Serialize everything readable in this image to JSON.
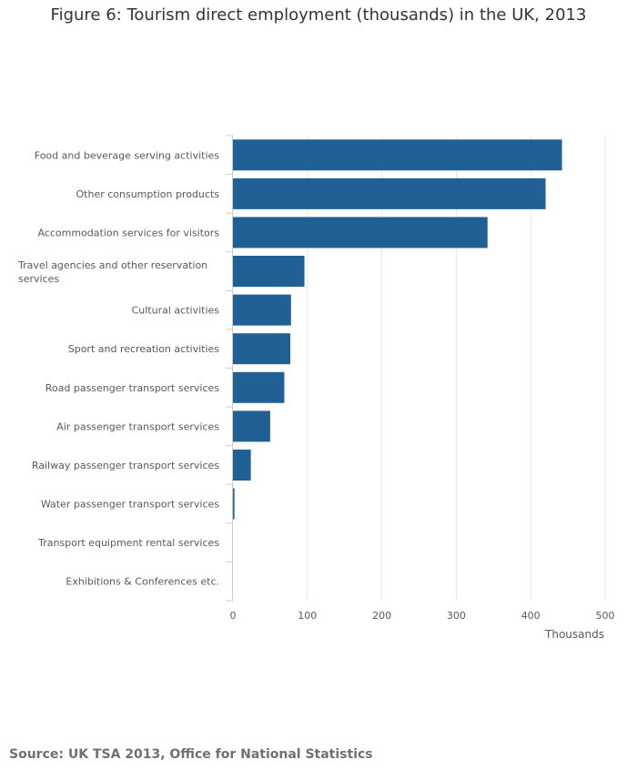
{
  "chart_data": {
    "type": "bar",
    "orientation": "horizontal",
    "title": "Figure 6: Tourism direct employment (thousands) in the UK, 2013",
    "xlabel": "Thousands",
    "ylabel": "",
    "categories": [
      "Food and beverage serving activities",
      "Other consumption products",
      "Accommodation services for visitors",
      "Travel agencies and other reservation services",
      "Cultural activities",
      "Sport and recreation activities",
      "Road passenger transport services",
      "Air passenger transport services",
      "Railway passenger transport services",
      "Water passenger transport services",
      "Transport equipment rental services",
      "Exhibitions & Conferences etc."
    ],
    "series": [
      {
        "values": [
          442,
          420,
          342,
          96,
          78,
          77,
          69,
          50,
          24,
          2,
          0,
          0
        ]
      }
    ],
    "xlim": [
      0,
      500
    ],
    "xticks": [
      0,
      100,
      200,
      300,
      400,
      500
    ],
    "grid": true,
    "colors": {
      "bar": "#206095",
      "grid": "#e6e6e6",
      "axis": "#cccccc"
    }
  },
  "source": "Source: UK TSA 2013, Office for National Statistics"
}
